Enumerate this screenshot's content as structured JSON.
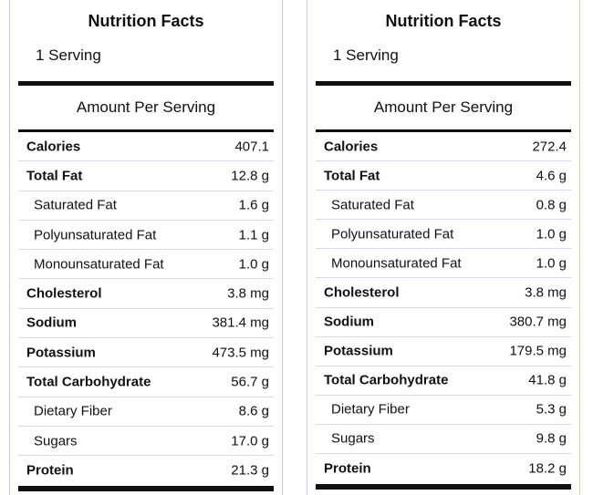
{
  "panels": [
    {
      "title": "Nutrition Facts",
      "serving": "1 Serving",
      "amount_per_serving": "Amount Per Serving",
      "rows": [
        {
          "label": "Calories",
          "value": "407.1",
          "bold": true,
          "sub": false
        },
        {
          "label": "Total Fat",
          "value": "12.8 g",
          "bold": true,
          "sub": false
        },
        {
          "label": "Saturated Fat",
          "value": "1.6 g",
          "bold": false,
          "sub": true
        },
        {
          "label": "Polyunsaturated Fat",
          "value": "1.1 g",
          "bold": false,
          "sub": true
        },
        {
          "label": "Monounsaturated Fat",
          "value": "1.0 g",
          "bold": false,
          "sub": true
        },
        {
          "label": "Cholesterol",
          "value": "3.8 mg",
          "bold": true,
          "sub": false
        },
        {
          "label": "Sodium",
          "value": "381.4 mg",
          "bold": true,
          "sub": false
        },
        {
          "label": "Potassium",
          "value": "473.5 mg",
          "bold": true,
          "sub": false
        },
        {
          "label": "Total Carbohydrate",
          "value": "56.7 g",
          "bold": true,
          "sub": false
        },
        {
          "label": "Dietary Fiber",
          "value": "8.6 g",
          "bold": false,
          "sub": true
        },
        {
          "label": "Sugars",
          "value": "17.0 g",
          "bold": false,
          "sub": true
        },
        {
          "label": "Protein",
          "value": "21.3 g",
          "bold": true,
          "sub": false
        }
      ]
    },
    {
      "title": "Nutrition Facts",
      "serving": "1 Serving",
      "amount_per_serving": "Amount Per Serving",
      "rows": [
        {
          "label": "Calories",
          "value": "272.4",
          "bold": true,
          "sub": false
        },
        {
          "label": "Total Fat",
          "value": "4.6 g",
          "bold": true,
          "sub": false
        },
        {
          "label": "Saturated Fat",
          "value": "0.8 g",
          "bold": false,
          "sub": true
        },
        {
          "label": "Polyunsaturated Fat",
          "value": "1.0 g",
          "bold": false,
          "sub": true
        },
        {
          "label": "Monounsaturated Fat",
          "value": "1.0 g",
          "bold": false,
          "sub": true
        },
        {
          "label": "Cholesterol",
          "value": "3.8 mg",
          "bold": true,
          "sub": false
        },
        {
          "label": "Sodium",
          "value": "380.7 mg",
          "bold": true,
          "sub": false
        },
        {
          "label": "Potassium",
          "value": "179.5 mg",
          "bold": true,
          "sub": false
        },
        {
          "label": "Total Carbohydrate",
          "value": "41.8 g",
          "bold": true,
          "sub": false
        },
        {
          "label": "Dietary Fiber",
          "value": "5.3 g",
          "bold": false,
          "sub": true
        },
        {
          "label": "Sugars",
          "value": "9.8 g",
          "bold": false,
          "sub": true
        },
        {
          "label": "Protein",
          "value": "18.2 g",
          "bold": true,
          "sub": false
        }
      ]
    }
  ]
}
